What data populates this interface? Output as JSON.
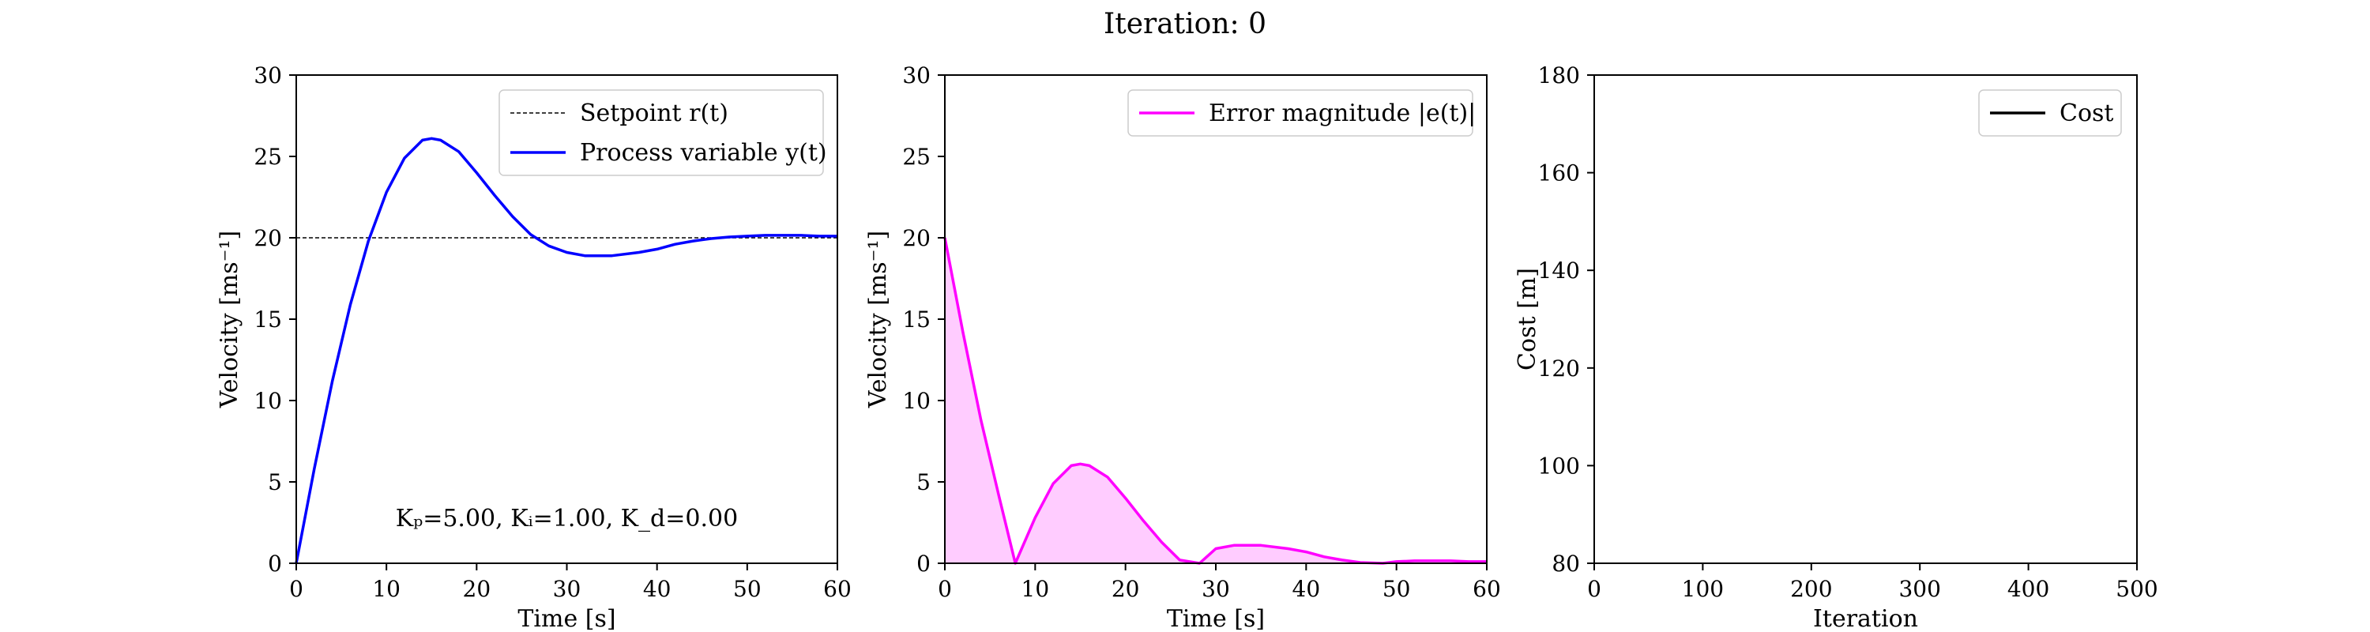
{
  "suptitle": "Iteration: 0",
  "chart_data": [
    {
      "type": "line",
      "xlabel": "Time [s]",
      "ylabel": "Velocity [ms⁻¹]",
      "xlim": [
        0,
        60
      ],
      "ylim": [
        0,
        30
      ],
      "xticks": [
        0,
        10,
        20,
        30,
        40,
        50,
        60
      ],
      "yticks": [
        0,
        5,
        10,
        15,
        20,
        25,
        30
      ],
      "grid": false,
      "legend": "top-right",
      "annotation": "Kₚ=5.00, Kᵢ=1.00, K_d=0.00",
      "series": [
        {
          "name": "Setpoint r(t)",
          "style": "dashed",
          "color": "#000000",
          "x": [
            0,
            60
          ],
          "y": [
            20,
            20
          ]
        },
        {
          "name": "Process variable y(t)",
          "style": "solid",
          "color": "#0000ff",
          "x": [
            0,
            2,
            4,
            6,
            8,
            10,
            12,
            14,
            15,
            16,
            18,
            20,
            22,
            24,
            26,
            28,
            30,
            32,
            35,
            38,
            40,
            42,
            44,
            46,
            48,
            50,
            52,
            54,
            56,
            58,
            60
          ],
          "y": [
            0,
            5.8,
            11.2,
            15.9,
            19.8,
            22.8,
            24.9,
            26.0,
            26.1,
            26.0,
            25.3,
            24.0,
            22.6,
            21.3,
            20.2,
            19.5,
            19.1,
            18.9,
            18.9,
            19.1,
            19.3,
            19.6,
            19.8,
            19.95,
            20.05,
            20.1,
            20.15,
            20.15,
            20.15,
            20.1,
            20.1
          ]
        }
      ]
    },
    {
      "type": "area",
      "xlabel": "Time [s]",
      "ylabel": "Velocity [ms⁻¹]",
      "xlim": [
        0,
        60
      ],
      "ylim": [
        0,
        30
      ],
      "xticks": [
        0,
        10,
        20,
        30,
        40,
        50,
        60
      ],
      "yticks": [
        0,
        5,
        10,
        15,
        20,
        25,
        30
      ],
      "grid": false,
      "legend": "top-right",
      "series": [
        {
          "name": "Error magnitude |e(t)|",
          "color": "#ff00ff",
          "fill": "#ffccff",
          "x": [
            0,
            2,
            4,
            6,
            7.8,
            10,
            12,
            14,
            15,
            16,
            18,
            20,
            22,
            24,
            26,
            28.2,
            30,
            32,
            35,
            38,
            40,
            42,
            44,
            46,
            48.5,
            50,
            52,
            54,
            56,
            58,
            60
          ],
          "y": [
            20,
            14.2,
            8.8,
            4.1,
            0,
            2.8,
            4.9,
            6.0,
            6.1,
            6.0,
            5.3,
            4.0,
            2.6,
            1.3,
            0.2,
            0,
            0.9,
            1.1,
            1.1,
            0.9,
            0.7,
            0.4,
            0.2,
            0.05,
            0,
            0.1,
            0.15,
            0.15,
            0.15,
            0.1,
            0.1
          ]
        }
      ]
    },
    {
      "type": "line",
      "xlabel": "Iteration",
      "ylabel": "Cost [m]",
      "xlim": [
        0,
        500
      ],
      "ylim": [
        80,
        180
      ],
      "xticks": [
        0,
        100,
        200,
        300,
        400,
        500
      ],
      "yticks": [
        80,
        100,
        120,
        140,
        160,
        180
      ],
      "grid": false,
      "legend": "top-right",
      "series": [
        {
          "name": "Cost",
          "color": "#000000",
          "x": [],
          "y": []
        }
      ]
    }
  ]
}
